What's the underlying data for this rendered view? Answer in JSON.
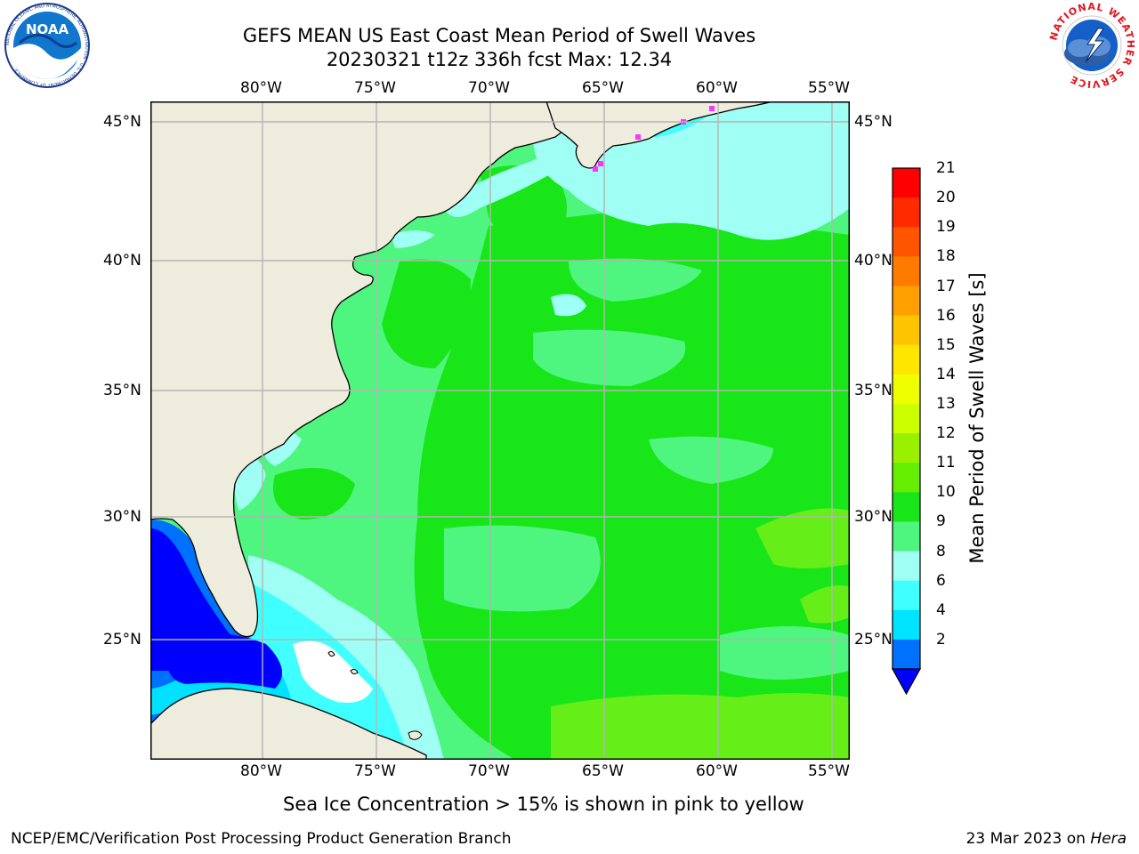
{
  "title": {
    "line1": "GEFS MEAN US East Coast Mean Period of Swell Waves",
    "line2": "20230321 t12z 336h fcst   Max: 12.34"
  },
  "logos": {
    "noaa": {
      "text": "NOAA",
      "ring_text": "NATIONAL OCEANIC AND ATMOSPHERIC ADMINISTRATION · U.S. DEPARTMENT OF COMMERCE"
    },
    "nws": {
      "ring_text": "NATIONAL WEATHER SERVICE"
    }
  },
  "map": {
    "lon_labels": [
      "80°W",
      "75°W",
      "70°W",
      "65°W",
      "60°W",
      "55°W"
    ],
    "lat_labels": [
      "45°N",
      "40°N",
      "35°N",
      "30°N",
      "25°N"
    ],
    "colors": {
      "land": "#eeecdc",
      "bg_period": "#4ef57e",
      "ocean_10_11": "#19e619",
      "ocean_11_12": "#66ee19",
      "ocean_9_10": "#44f28a",
      "ocean_8_9": "#a0fff4",
      "ocean_6_8": "#40ffff",
      "ocean_4_6": "#00e0ff",
      "ocean_2_4": "#0070ff",
      "ocean_lt2": "#0000ff",
      "ice": "#ff33ff",
      "grid": "#b4b4b4"
    }
  },
  "colorbar": {
    "title": "Mean Period of Swell Waves [s]",
    "labels": [
      "21",
      "20",
      "19",
      "18",
      "17",
      "16",
      "15",
      "14",
      "13",
      "12",
      "11",
      "10",
      "9",
      "8",
      "6",
      "4",
      "2"
    ],
    "colors": [
      "#ff0000",
      "#ff2a00",
      "#ff5500",
      "#ff7b00",
      "#ffa000",
      "#ffc400",
      "#ffe600",
      "#f0ff00",
      "#ccff00",
      "#99f000",
      "#66ee00",
      "#19e619",
      "#4ef57e",
      "#a0fff4",
      "#40ffff",
      "#00e5ff",
      "#0070ff"
    ],
    "under_color": "#0000ff"
  },
  "note": "Sea Ice Concentration > 15% is shown in pink to yellow",
  "footer": {
    "left": "NCEP/EMC/Verification Post Processing Product Generation Branch",
    "right_prefix": "23 Mar 2023 on ",
    "right_host": "Hera"
  }
}
